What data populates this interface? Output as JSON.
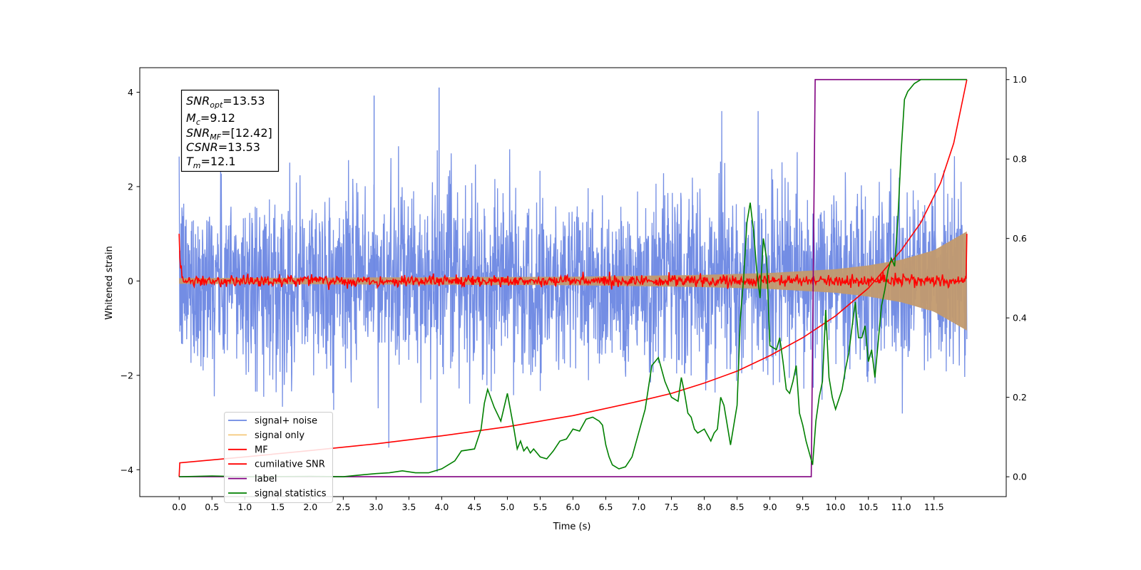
{
  "chart_data": {
    "type": "line",
    "xlabel": "Time (s)",
    "ylabel": "Whitened strain",
    "xlim": [
      -0.6,
      12.6
    ],
    "ylim_left": [
      -4.57,
      4.52
    ],
    "ylim_right": [
      -0.05,
      1.03
    ],
    "x_ticks": [
      "0.0",
      "0.5",
      "1.0",
      "1.5",
      "2.0",
      "2.5",
      "3.0",
      "3.5",
      "4.0",
      "4.5",
      "5.0",
      "5.5",
      "6.0",
      "6.5",
      "7.0",
      "7.5",
      "8.0",
      "8.5",
      "9.0",
      "9.5",
      "10.0",
      "10.5",
      "11.0",
      "11.5"
    ],
    "y_ticks_left": [
      "4",
      "2",
      "0",
      "−2",
      "−4"
    ],
    "y_ticks_right": [
      "1.0",
      "0.8",
      "0.6",
      "0.4",
      "0.2",
      "0.0"
    ],
    "annotation": {
      "snr_opt": "=13.53",
      "mc": "=9.12",
      "snr_mf": "=[12.42]",
      "csnr": "=13.53",
      "tm": "=12.1"
    },
    "legend": {
      "placement": "lower-left",
      "items": [
        {
          "label": "signal+ noise",
          "color": "#6b87e3"
        },
        {
          "label": "signal only",
          "color": "#f5c87a"
        },
        {
          "label": "MF",
          "color": "#ff0000"
        },
        {
          "label": "cumilative SNR",
          "color": "#ff0000"
        },
        {
          "label": "label",
          "color": "#800080"
        },
        {
          "label": "signal statistics",
          "color": "#008000"
        }
      ]
    },
    "series": [
      {
        "name": "signal+ noise",
        "axis": "left",
        "color": "#6b87e3",
        "description_values": {
          "x_start": 0.0,
          "x_end": 12.0,
          "typical_range": [
            -2.6,
            2.8
          ],
          "peaks": [
            [
              3.96,
              4.1
            ],
            [
              2.97,
              3.93
            ],
            [
              3.93,
              -4.05
            ]
          ]
        }
      },
      {
        "name": "signal only",
        "axis": "left",
        "color": "#c29a6e",
        "envelope": {
          "x": [
            0,
            6,
            8,
            9,
            10,
            10.5,
            11,
            11.5,
            12.0
          ],
          "amp": [
            0.06,
            0.09,
            0.13,
            0.17,
            0.25,
            0.33,
            0.45,
            0.65,
            1.05
          ]
        }
      },
      {
        "name": "MF",
        "axis": "left",
        "color": "#ff0000",
        "base": [
          0.0,
          0.0
        ],
        "edges": [
          [
            0.0,
            1.0
          ],
          [
            12.0,
            1.0
          ]
        ]
      },
      {
        "name": "cumilative SNR",
        "axis": "right",
        "color": "#ff0000",
        "x": [
          0.0,
          0.01,
          1,
          2,
          3,
          4,
          5,
          6,
          7,
          7.5,
          8,
          8.5,
          9,
          9.5,
          10,
          10.5,
          11,
          11.3,
          11.6,
          11.8,
          12.0
        ],
        "y": [
          0.0,
          0.035,
          0.05,
          0.066,
          0.083,
          0.103,
          0.126,
          0.154,
          0.19,
          0.21,
          0.236,
          0.266,
          0.305,
          0.35,
          0.405,
          0.475,
          0.57,
          0.64,
          0.74,
          0.84,
          1.0
        ]
      },
      {
        "name": "label",
        "axis": "right",
        "color": "#800080",
        "x": [
          0.0,
          9.63,
          9.69,
          12.0
        ],
        "y": [
          0.0,
          0.0,
          1.0,
          1.0
        ]
      },
      {
        "name": "signal statistics",
        "axis": "right",
        "color": "#008000",
        "x": [
          0.0,
          0.5,
          1.0,
          2.0,
          2.5,
          2.8,
          3.0,
          3.2,
          3.4,
          3.6,
          3.8,
          4.0,
          4.2,
          4.3,
          4.5,
          4.6,
          4.65,
          4.7,
          4.8,
          4.9,
          5.0,
          5.1,
          5.15,
          5.2,
          5.25,
          5.3,
          5.35,
          5.4,
          5.5,
          5.6,
          5.7,
          5.8,
          5.9,
          6.0,
          6.1,
          6.2,
          6.3,
          6.4,
          6.45,
          6.5,
          6.55,
          6.6,
          6.7,
          6.8,
          6.9,
          7.0,
          7.1,
          7.2,
          7.3,
          7.4,
          7.5,
          7.6,
          7.65,
          7.7,
          7.75,
          7.8,
          7.85,
          7.9,
          8.0,
          8.1,
          8.15,
          8.2,
          8.25,
          8.3,
          8.4,
          8.5,
          8.55,
          8.6,
          8.65,
          8.7,
          8.75,
          8.8,
          8.85,
          8.9,
          8.95,
          9.0,
          9.1,
          9.15,
          9.2,
          9.25,
          9.3,
          9.35,
          9.4,
          9.45,
          9.5,
          9.55,
          9.6,
          9.65,
          9.7,
          9.75,
          9.8,
          9.85,
          9.9,
          9.95,
          10.0,
          10.1,
          10.15,
          10.2,
          10.3,
          10.35,
          10.4,
          10.45,
          10.5,
          10.55,
          10.6,
          10.7,
          10.75,
          10.8,
          10.85,
          10.9,
          10.95,
          11.0,
          11.05,
          11.1,
          11.2,
          11.3,
          11.5,
          11.7,
          11.9,
          12.0
        ],
        "y": [
          0.0,
          0.002,
          0.0,
          0.001,
          0.0,
          0.005,
          0.008,
          0.01,
          0.015,
          0.01,
          0.01,
          0.02,
          0.04,
          0.065,
          0.07,
          0.12,
          0.185,
          0.22,
          0.175,
          0.14,
          0.21,
          0.12,
          0.07,
          0.09,
          0.065,
          0.075,
          0.06,
          0.07,
          0.05,
          0.045,
          0.065,
          0.09,
          0.095,
          0.12,
          0.115,
          0.145,
          0.15,
          0.14,
          0.13,
          0.08,
          0.05,
          0.03,
          0.02,
          0.025,
          0.05,
          0.11,
          0.17,
          0.28,
          0.3,
          0.24,
          0.2,
          0.19,
          0.25,
          0.21,
          0.16,
          0.15,
          0.12,
          0.11,
          0.12,
          0.09,
          0.11,
          0.12,
          0.2,
          0.18,
          0.08,
          0.18,
          0.4,
          0.5,
          0.64,
          0.69,
          0.62,
          0.52,
          0.45,
          0.6,
          0.55,
          0.33,
          0.32,
          0.35,
          0.29,
          0.22,
          0.21,
          0.24,
          0.28,
          0.16,
          0.13,
          0.09,
          0.06,
          0.03,
          0.14,
          0.2,
          0.24,
          0.42,
          0.25,
          0.2,
          0.17,
          0.22,
          0.27,
          0.31,
          0.44,
          0.35,
          0.35,
          0.38,
          0.29,
          0.32,
          0.25,
          0.43,
          0.47,
          0.52,
          0.55,
          0.53,
          0.65,
          0.82,
          0.95,
          0.97,
          0.99,
          1.0,
          1.0,
          1.0,
          1.0,
          1.0
        ]
      }
    ]
  }
}
